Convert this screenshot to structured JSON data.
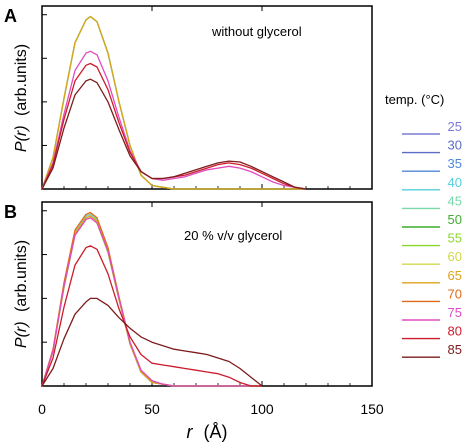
{
  "chart_data": {
    "type": "line",
    "xlabel_main": "r",
    "xlabel_unit": "(Å)",
    "ylabel_main": "P(r)",
    "ylabel_unit": "(arb.units)",
    "xlim": [
      0,
      150
    ],
    "xticks": [
      0,
      50,
      100,
      150
    ],
    "ylim": [
      0,
      1.0
    ],
    "legend": {
      "title": "temp. (°C)",
      "placement": "right",
      "entries": [
        {
          "label": "25",
          "color": "#7b7bd6"
        },
        {
          "label": "30",
          "color": "#5a6cc8"
        },
        {
          "label": "35",
          "color": "#4f88d8"
        },
        {
          "label": "40",
          "color": "#56d0dc"
        },
        {
          "label": "45",
          "color": "#78d8a8"
        },
        {
          "label": "50",
          "color": "#3cae2c"
        },
        {
          "label": "55",
          "color": "#8cd62c"
        },
        {
          "label": "60",
          "color": "#d0d84a"
        },
        {
          "label": "65",
          "color": "#dca41c"
        },
        {
          "label": "70",
          "color": "#e06a1c"
        },
        {
          "label": "75",
          "color": "#e04cc0"
        },
        {
          "label": "80",
          "color": "#cc1c2c"
        },
        {
          "label": "85",
          "color": "#7c1c1c"
        }
      ]
    },
    "panels": [
      {
        "label": "A",
        "annotation": "without glycerol",
        "series": [
          {
            "label": "25",
            "x": [
              0,
              5,
              10,
              15,
              20,
              22,
              25,
              30,
              35,
              40,
              45,
              50,
              55,
              60,
              65,
              70,
              75,
              80,
              85,
              90,
              95,
              100,
              105,
              110,
              115,
              120
            ],
            "y": [
              0,
              0.18,
              0.52,
              0.84,
              0.97,
              0.99,
              0.96,
              0.78,
              0.5,
              0.25,
              0.08,
              0.02,
              0.01,
              0,
              0,
              0,
              0,
              0,
              0,
              0,
              0,
              0,
              0,
              0,
              0,
              0
            ]
          },
          {
            "label": "45",
            "x": [
              0,
              5,
              10,
              15,
              20,
              22,
              25,
              30,
              35,
              40,
              45,
              50,
              55,
              60,
              65,
              70,
              75,
              80,
              85,
              90,
              95,
              100,
              105,
              110,
              115,
              120
            ],
            "y": [
              0,
              0.18,
              0.52,
              0.84,
              0.97,
              0.99,
              0.96,
              0.78,
              0.5,
              0.25,
              0.08,
              0.02,
              0.01,
              0,
              0,
              0,
              0,
              0,
              0,
              0,
              0,
              0,
              0,
              0,
              0,
              0
            ]
          },
          {
            "label": "55",
            "x": [
              0,
              5,
              10,
              15,
              20,
              22,
              25,
              30,
              35,
              40,
              45,
              50,
              55,
              60,
              65,
              70,
              75,
              80,
              85,
              90,
              95,
              100,
              105,
              110,
              115,
              120
            ],
            "y": [
              0,
              0.18,
              0.52,
              0.84,
              0.97,
              0.99,
              0.96,
              0.78,
              0.5,
              0.25,
              0.08,
              0.02,
              0.01,
              0,
              0,
              0,
              0,
              0,
              0,
              0,
              0,
              0,
              0,
              0,
              0,
              0
            ]
          },
          {
            "label": "65",
            "x": [
              0,
              5,
              10,
              15,
              20,
              22,
              25,
              30,
              35,
              40,
              45,
              50,
              55,
              60,
              65,
              70,
              75,
              80,
              85,
              90,
              95,
              100,
              105,
              110,
              115,
              120
            ],
            "y": [
              0,
              0.18,
              0.52,
              0.84,
              0.97,
              0.99,
              0.96,
              0.78,
              0.5,
              0.25,
              0.08,
              0.02,
              0.01,
              0,
              0,
              0,
              0,
              0,
              0,
              0,
              0,
              0,
              0,
              0,
              0,
              0
            ]
          },
          {
            "label": "75",
            "x": [
              0,
              5,
              10,
              15,
              20,
              22,
              25,
              30,
              35,
              40,
              45,
              50,
              55,
              60,
              65,
              70,
              75,
              80,
              85,
              90,
              95,
              100,
              105,
              110,
              115,
              120
            ],
            "y": [
              0,
              0.15,
              0.43,
              0.68,
              0.78,
              0.79,
              0.77,
              0.62,
              0.41,
              0.22,
              0.1,
              0.06,
              0.05,
              0.06,
              0.07,
              0.09,
              0.11,
              0.12,
              0.13,
              0.12,
              0.1,
              0.07,
              0.04,
              0.02,
              0.01,
              0
            ]
          },
          {
            "label": "80",
            "x": [
              0,
              5,
              10,
              15,
              20,
              22,
              25,
              30,
              35,
              40,
              45,
              50,
              55,
              60,
              65,
              70,
              75,
              80,
              85,
              90,
              95,
              100,
              105,
              110,
              115,
              120
            ],
            "y": [
              0,
              0.14,
              0.4,
              0.62,
              0.71,
              0.72,
              0.7,
              0.57,
              0.38,
              0.21,
              0.1,
              0.06,
              0.06,
              0.07,
              0.08,
              0.1,
              0.12,
              0.14,
              0.15,
              0.14,
              0.12,
              0.09,
              0.06,
              0.03,
              0.01,
              0
            ]
          },
          {
            "label": "85",
            "x": [
              0,
              5,
              10,
              15,
              20,
              22,
              25,
              30,
              35,
              40,
              45,
              50,
              55,
              60,
              65,
              70,
              75,
              80,
              85,
              90,
              95,
              100,
              105,
              110,
              115,
              120
            ],
            "y": [
              0,
              0.12,
              0.35,
              0.54,
              0.62,
              0.63,
              0.61,
              0.5,
              0.34,
              0.19,
              0.1,
              0.06,
              0.06,
              0.07,
              0.09,
              0.11,
              0.13,
              0.15,
              0.16,
              0.155,
              0.13,
              0.1,
              0.07,
              0.04,
              0.01,
              0
            ]
          }
        ]
      },
      {
        "label": "B",
        "annotation": "20 % v/v glycerol",
        "series": [
          {
            "label": "25",
            "x": [
              0,
              5,
              10,
              15,
              20,
              22,
              25,
              30,
              35,
              40,
              45,
              50,
              55,
              60,
              65,
              70,
              75,
              80,
              85,
              90,
              95,
              100
            ],
            "y": [
              0,
              0.2,
              0.58,
              0.88,
              0.97,
              0.98,
              0.95,
              0.78,
              0.5,
              0.24,
              0.08,
              0.02,
              0.01,
              0,
              0,
              0,
              0,
              0,
              0,
              0,
              0,
              0
            ]
          },
          {
            "label": "45",
            "x": [
              0,
              5,
              10,
              15,
              20,
              22,
              25,
              30,
              35,
              40,
              45,
              50,
              55,
              60,
              65,
              70,
              75,
              80,
              85,
              90,
              95,
              100
            ],
            "y": [
              0,
              0.2,
              0.58,
              0.88,
              0.97,
              0.98,
              0.95,
              0.78,
              0.5,
              0.24,
              0.08,
              0.02,
              0.01,
              0,
              0,
              0,
              0,
              0,
              0,
              0,
              0,
              0
            ]
          },
          {
            "label": "55",
            "x": [
              0,
              5,
              10,
              15,
              20,
              22,
              25,
              30,
              35,
              40,
              45,
              50,
              55,
              60,
              65,
              70,
              75,
              80,
              85,
              90,
              95,
              100
            ],
            "y": [
              0,
              0.2,
              0.56,
              0.86,
              0.95,
              0.96,
              0.93,
              0.76,
              0.49,
              0.24,
              0.08,
              0.02,
              0.01,
              0,
              0,
              0,
              0,
              0,
              0,
              0,
              0,
              0
            ]
          },
          {
            "label": "65",
            "x": [
              0,
              5,
              10,
              15,
              20,
              22,
              25,
              30,
              35,
              40,
              45,
              50,
              55,
              60,
              65,
              70,
              75,
              80,
              85,
              90,
              95,
              100
            ],
            "y": [
              0,
              0.2,
              0.57,
              0.87,
              0.96,
              0.97,
              0.94,
              0.77,
              0.5,
              0.24,
              0.08,
              0.02,
              0.01,
              0,
              0,
              0,
              0,
              0,
              0,
              0,
              0,
              0
            ]
          },
          {
            "label": "70",
            "x": [
              0,
              5,
              10,
              15,
              20,
              22,
              25,
              30,
              35,
              40,
              45,
              50,
              55,
              60,
              65,
              70,
              75,
              80,
              85,
              90,
              95,
              100
            ],
            "y": [
              0,
              0.21,
              0.59,
              0.89,
              0.98,
              0.99,
              0.96,
              0.79,
              0.51,
              0.25,
              0.09,
              0.03,
              0.01,
              0,
              0,
              0,
              0,
              0,
              0,
              0,
              0,
              0
            ]
          },
          {
            "label": "75",
            "x": [
              0,
              5,
              10,
              15,
              20,
              22,
              25,
              30,
              35,
              40,
              45,
              50,
              55,
              60,
              65,
              70,
              75,
              80,
              85,
              90,
              95,
              100
            ],
            "y": [
              0,
              0.2,
              0.57,
              0.86,
              0.95,
              0.96,
              0.93,
              0.77,
              0.5,
              0.25,
              0.09,
              0.03,
              0.01,
              0,
              0,
              0,
              0,
              0,
              0,
              0,
              0,
              0
            ]
          },
          {
            "label": "80",
            "x": [
              0,
              5,
              10,
              15,
              20,
              22,
              25,
              30,
              35,
              40,
              45,
              50,
              55,
              60,
              65,
              70,
              75,
              80,
              85,
              90,
              95,
              100
            ],
            "y": [
              0,
              0.16,
              0.45,
              0.69,
              0.79,
              0.8,
              0.78,
              0.64,
              0.44,
              0.28,
              0.18,
              0.13,
              0.12,
              0.11,
              0.1,
              0.09,
              0.08,
              0.07,
              0.05,
              0.02,
              0,
              0
            ]
          },
          {
            "label": "85",
            "x": [
              0,
              5,
              10,
              15,
              20,
              22,
              25,
              30,
              35,
              40,
              45,
              50,
              55,
              60,
              65,
              70,
              75,
              80,
              85,
              90,
              95,
              100
            ],
            "y": [
              0,
              0.1,
              0.27,
              0.41,
              0.48,
              0.5,
              0.5,
              0.46,
              0.39,
              0.33,
              0.28,
              0.25,
              0.23,
              0.21,
              0.2,
              0.19,
              0.18,
              0.16,
              0.14,
              0.1,
              0.05,
              0
            ]
          }
        ]
      }
    ]
  }
}
